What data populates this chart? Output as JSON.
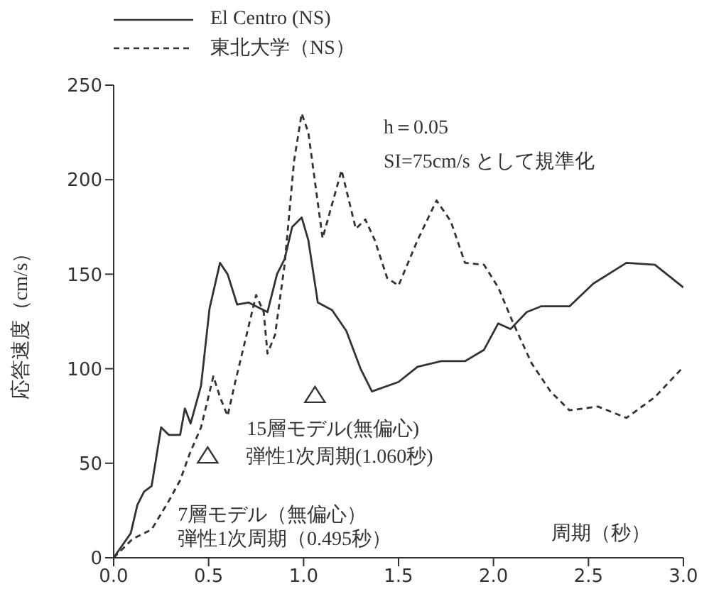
{
  "chart_data": {
    "type": "line",
    "xlabel": "周期（秒）",
    "ylabel": "応答速度（cm/s）",
    "legend": "top left",
    "xlim": [
      0,
      3
    ],
    "xticks": [
      {
        "value": 0,
        "label": "0.0"
      },
      {
        "value": 0.5,
        "label": "0.5"
      },
      {
        "value": 1,
        "label": "1.0"
      },
      {
        "value": 1.5,
        "label": "1.5"
      },
      {
        "value": 2,
        "label": "2.0"
      },
      {
        "value": 2.5,
        "label": "2.5"
      },
      {
        "value": 3,
        "label": "3.0"
      }
    ],
    "ylim": [
      0,
      250
    ],
    "yticks": [
      0,
      50,
      100,
      150,
      200,
      250
    ],
    "grid": false,
    "marker": "none",
    "series": [
      {
        "name": "El Centro (NS)",
        "color": "#333333",
        "line_style": "solid",
        "x": [
          0,
          0.09,
          0.125,
          0.16,
          0.2,
          0.25,
          0.29,
          0.35,
          0.375,
          0.405,
          0.46,
          0.505,
          0.56,
          0.6,
          0.65,
          0.71,
          0.81,
          0.86,
          0.9,
          0.94,
          0.99,
          1.025,
          1.075,
          1.15,
          1.225,
          1.3,
          1.36,
          1.5,
          1.6,
          1.725,
          1.85,
          1.95,
          2.025,
          2.09,
          2.175,
          2.25,
          2.4,
          2.525,
          2.7,
          2.85,
          3.0
        ],
        "values": [
          0,
          13,
          28,
          35,
          38,
          69,
          65,
          65,
          79,
          71,
          91,
          132,
          156,
          150,
          134,
          135,
          130,
          150,
          158,
          175,
          180,
          168,
          135,
          131,
          120,
          100,
          88,
          93,
          101,
          104,
          104,
          110,
          124,
          121,
          130,
          133,
          133,
          145,
          156,
          155,
          143
        ]
      },
      {
        "name": "東北大学（NS）",
        "color": "#333333",
        "line_style": "dashed",
        "x": [
          0,
          0.1,
          0.2,
          0.29,
          0.35,
          0.4,
          0.46,
          0.525,
          0.56,
          0.6,
          0.64,
          0.7,
          0.75,
          0.79,
          0.81,
          0.85,
          0.9,
          0.95,
          0.99,
          1.025,
          1.1,
          1.2,
          1.275,
          1.325,
          1.375,
          1.44,
          1.5,
          1.6,
          1.7,
          1.775,
          1.85,
          1.95,
          2.025,
          2.1,
          2.2,
          2.3,
          2.4,
          2.55,
          2.7,
          2.85,
          3.0
        ],
        "values": [
          0,
          10,
          15,
          30,
          41,
          55,
          69,
          96,
          85,
          75,
          93,
          118,
          139,
          130,
          108,
          118,
          155,
          210,
          235,
          225,
          169,
          205,
          174,
          179,
          168,
          148,
          144,
          168,
          189,
          178,
          156,
          155,
          143,
          125,
          103,
          88,
          78,
          80,
          74,
          85,
          101
        ]
      }
    ],
    "annotations": [
      "h＝0.05",
      "SI=75cm/s として規準化",
      "弾性1次周期(1.060秒)",
      "弾性1次周期（0.495秒）",
      {
        "text": "15層モデル(無偏心)",
        "x": 1.06,
        "y": 86
      },
      {
        "text": "7層モデル（無偏心）",
        "x": 0.495,
        "y": 54
      }
    ]
  }
}
